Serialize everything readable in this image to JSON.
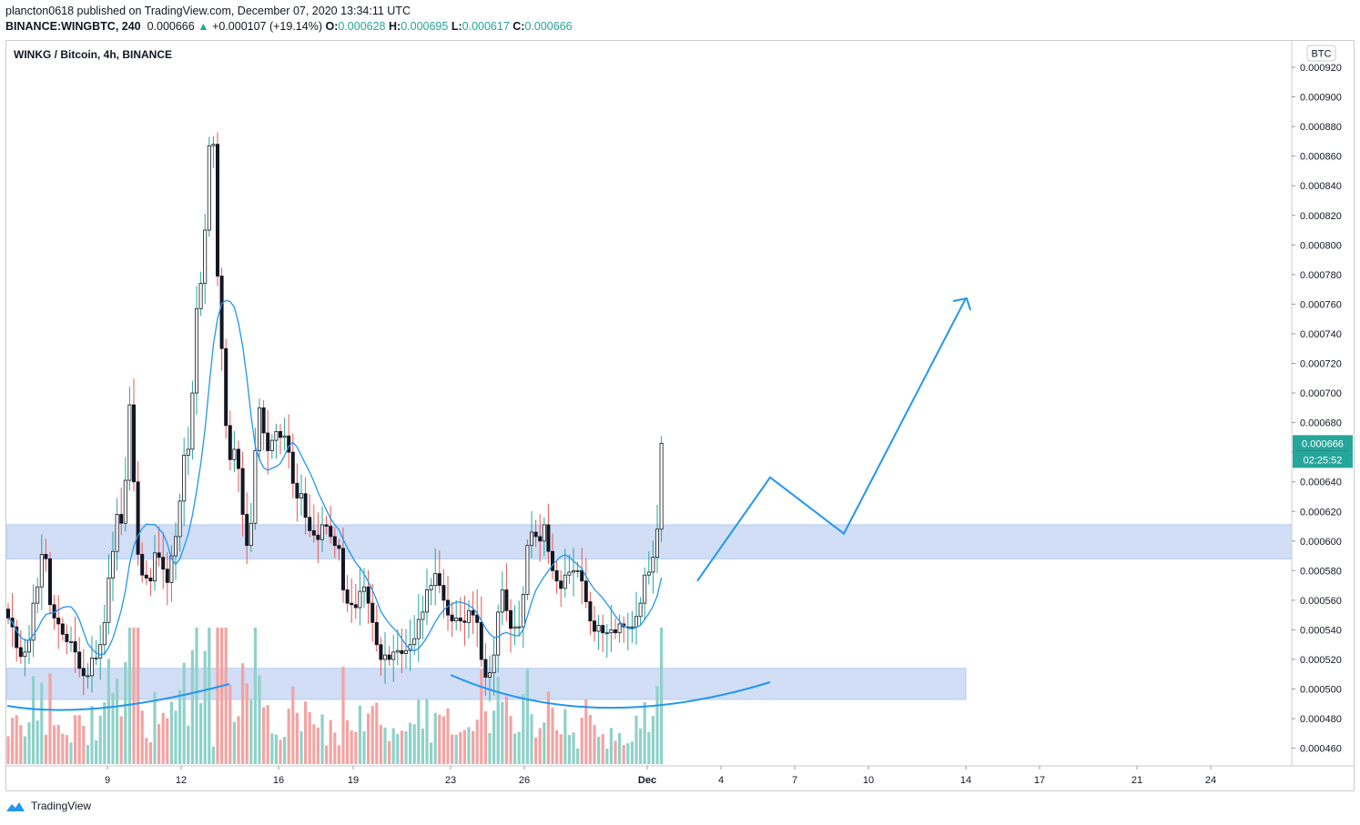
{
  "header": {
    "publisher_line": "plancton0618 published on TradingView.com, December 07, 2020 13:34:11 UTC",
    "symbol": "BINANCE:WINGBTC, 240",
    "last": "0.000666",
    "change": "+0.000107 (+19.14%)",
    "o_label": "O:",
    "o_value": "0.000628",
    "h_label": "H:",
    "h_value": "0.000695",
    "l_label": "L:",
    "l_value": "0.000617",
    "c_label": "C:",
    "c_value": "0.000666"
  },
  "chart_title": "WINKG / Bitcoin, 4h, BINANCE",
  "footer": {
    "brand": "TradingView"
  },
  "colors": {
    "up": "#26a69a",
    "down": "#ef5350",
    "ma": "#2196f3",
    "zone": "#cfdcf6",
    "price_tag": "#26a69a"
  },
  "chart_data": {
    "type": "candlestick",
    "y_axis": {
      "unit": "BTC",
      "ticks": [
        "0.000920",
        "0.000900",
        "0.000880",
        "0.000860",
        "0.000840",
        "0.000820",
        "0.000800",
        "0.000780",
        "0.000760",
        "0.000740",
        "0.000720",
        "0.000700",
        "0.000680",
        "0.000660",
        "0.000640",
        "0.000620",
        "0.000600",
        "0.000580",
        "0.000560",
        "0.000540",
        "0.000520",
        "0.000500",
        "0.000480",
        "0.000460"
      ],
      "range": [
        0.000451,
        0.000927
      ]
    },
    "x_axis": {
      "ticks": [
        "9",
        "12",
        "16",
        "19",
        "23",
        "26",
        "Dec",
        "4",
        "7",
        "10",
        "14",
        "17",
        "21",
        "24"
      ]
    },
    "price_tag": {
      "value": "0.000666",
      "countdown": "02:25:52"
    },
    "zones": [
      {
        "from": 0.000588,
        "to": 0.000611
      },
      {
        "from": 0.000493,
        "to": 0.000514
      }
    ],
    "bars_count": 186,
    "close_series": [
      0.000548,
      0.000542,
      0.000528,
      0.000522,
      0.000525,
      0.000533,
      0.000558,
      0.000569,
      0.000591,
      0.000588,
      0.000557,
      0.000548,
      0.000544,
      0.000537,
      0.000532,
      0.000532,
      0.000525,
      0.000514,
      0.000509,
      0.000509,
      0.000521,
      0.000521,
      0.00053,
      0.000545,
      0.000575,
      0.000593,
      0.000618,
      0.000612,
      0.000641,
      0.000692,
      0.00064,
      0.000591,
      0.000577,
      0.000575,
      0.000573,
      0.000592,
      0.000589,
      0.000581,
      0.000572,
      0.00059,
      0.000603,
      0.000627,
      0.000658,
      0.000662,
      0.0007,
      0.000757,
      0.000774,
      0.00081,
      0.000867,
      0.000868,
      0.000779,
      0.00073,
      0.000678,
      0.000655,
      0.000662,
      0.000649,
      0.000618,
      0.000597,
      0.000612,
      0.000661,
      0.00069,
      0.000673,
      0.000661,
      0.000668,
      0.000674,
      0.00067,
      0.000671,
      0.00066,
      0.000639,
      0.000629,
      0.000632,
      0.000616,
      0.000607,
      0.000604,
      0.000601,
      0.000611,
      0.00061,
      0.000603,
      0.000597,
      0.000595,
      0.000567,
      0.000558,
      0.000557,
      0.000555,
      0.000566,
      0.000569,
      0.000558,
      0.000545,
      0.00053,
      0.00052,
      0.000523,
      0.00052,
      0.000525,
      0.000526,
      0.000524,
      0.000526,
      0.00053,
      0.000534,
      0.000547,
      0.000552,
      0.000567,
      0.00057,
      0.000578,
      0.00057,
      0.00056,
      0.00055,
      0.000546,
      0.000548,
      0.000546,
      0.000545,
      0.000553,
      0.00055,
      0.000545,
      0.00052,
      0.000508,
      0.000511,
      0.000523,
      0.000552,
      0.000567,
      0.000553,
      0.000541,
      0.000542,
      0.000542,
      0.000564,
      0.000597,
      0.000606,
      0.000603,
      0.0006,
      0.000611,
      0.000593,
      0.00058,
      0.000573,
      0.000568,
      0.000577,
      0.000579,
      0.00058,
      0.00058,
      0.000573,
      0.000559,
      0.000546,
      0.000539,
      0.000543,
      0.000538,
      0.000538,
      0.00054,
      0.000538,
      0.000544,
      0.000542,
      0.000542,
      0.000542,
      0.000549,
      0.000558,
      0.000577,
      0.000579,
      0.000589,
      0.000608,
      0.000666
    ],
    "series": [
      {
        "name": "Moving average",
        "style": "line"
      },
      {
        "name": "Volume",
        "style": "bars"
      }
    ],
    "projection_path": [
      {
        "date": "Dec 3",
        "price": 0.000573
      },
      {
        "date": "Dec 6",
        "price": 0.000643
      },
      {
        "date": "Dec 9",
        "price": 0.000605
      },
      {
        "date": "Dec 13",
        "price": 0.000764
      }
    ],
    "grid": false,
    "rounded_bottoms": 2
  }
}
